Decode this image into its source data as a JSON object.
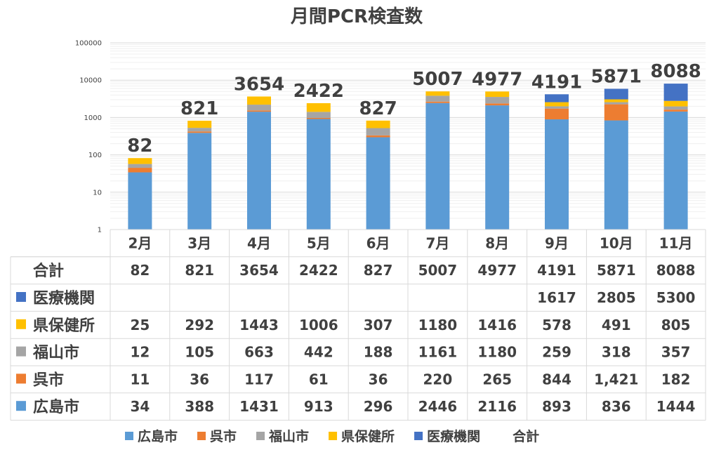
{
  "chart_data": {
    "type": "bar",
    "stacked": true,
    "y_scale": "log",
    "title": "月間PCR検査数",
    "categories": [
      "2月",
      "3月",
      "4月",
      "5月",
      "6月",
      "7月",
      "8月",
      "9月",
      "10月",
      "11月"
    ],
    "ylim": [
      1,
      100000
    ],
    "yticks": [
      "1",
      "10",
      "100",
      "1000",
      "10000",
      "100000"
    ],
    "grid": true,
    "legend_position": "bottom",
    "series": [
      {
        "name": "広島市",
        "color": "#5b9bd5",
        "values": [
          "34",
          "388",
          "1431",
          "913",
          "296",
          "2446",
          "2116",
          "893",
          "836",
          "1444"
        ]
      },
      {
        "name": "呉市",
        "color": "#ed7d31",
        "values": [
          "11",
          "36",
          "117",
          "61",
          "36",
          "220",
          "265",
          "844",
          "1,421",
          "182"
        ]
      },
      {
        "name": "福山市",
        "color": "#a5a5a5",
        "values": [
          "12",
          "105",
          "663",
          "442",
          "188",
          "1161",
          "1180",
          "259",
          "318",
          "357"
        ]
      },
      {
        "name": "県保健所",
        "color": "#ffc000",
        "values": [
          "25",
          "292",
          "1443",
          "1006",
          "307",
          "1180",
          "1416",
          "578",
          "491",
          "805"
        ]
      },
      {
        "name": "医療機関",
        "color": "#4472c4",
        "values": [
          "",
          "",
          "",
          "",
          "",
          "",
          "",
          "1617",
          "2805",
          "5300"
        ]
      }
    ],
    "total": {
      "name": "合計",
      "values": [
        "82",
        "821",
        "3654",
        "2422",
        "827",
        "5007",
        "4977",
        "4191",
        "5871",
        "8088"
      ]
    }
  }
}
